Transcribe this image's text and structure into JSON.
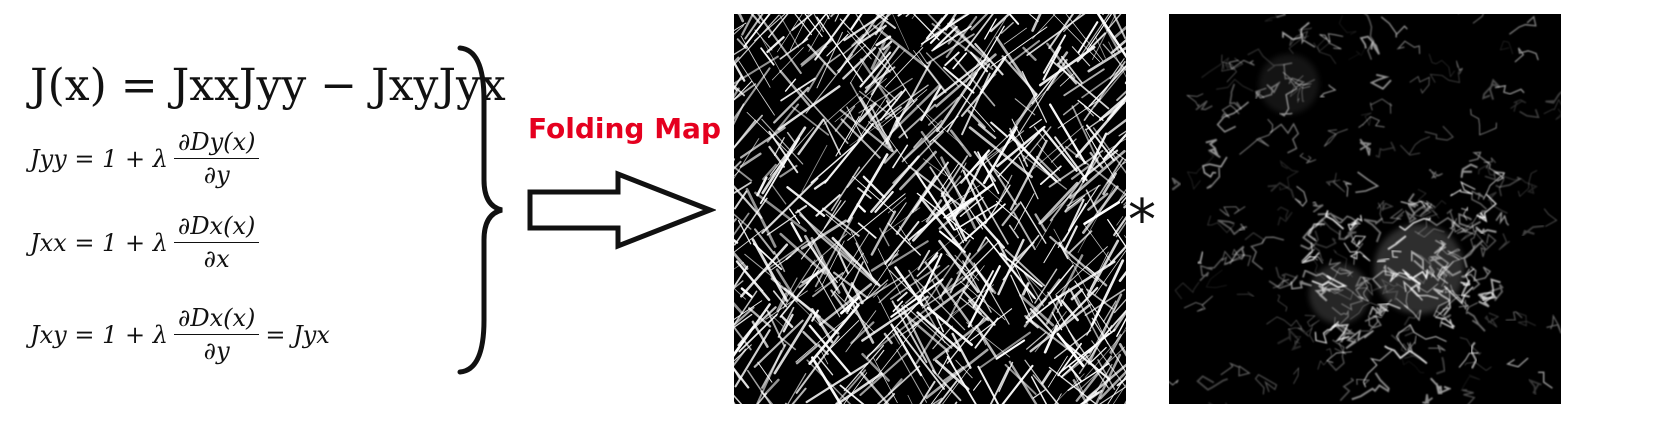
{
  "equations": {
    "main": "J(x) = JxxJyy − JxyJyx",
    "rows": [
      {
        "lhs": "Jyy = 1 + λ",
        "num": "∂Dy(x)",
        "den": "∂y",
        "post": ""
      },
      {
        "lhs": "Jxx = 1 + λ",
        "num": "∂Dx(x)",
        "den": "∂x",
        "post": ""
      },
      {
        "lhs": "Jxy = 1 + λ",
        "num": "∂Dx(x)",
        "den": "∂y",
        "post": "= Jyx"
      }
    ]
  },
  "label": "Folding Map",
  "operator": "*",
  "colors": {
    "label": "#e5001f",
    "panel_bg": "#000000",
    "ink": "#111111"
  },
  "icons": {
    "brace": "right-brace-icon",
    "arrow": "hollow-right-arrow-icon"
  },
  "panels": [
    {
      "name": "folding-map-image",
      "description_visible": false
    },
    {
      "name": "density-field-image",
      "description_visible": false
    }
  ]
}
